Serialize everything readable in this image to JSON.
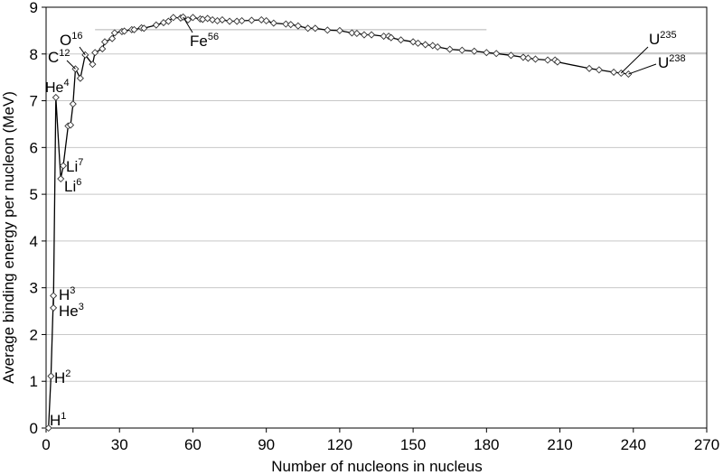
{
  "chart_data": {
    "type": "line",
    "title": "",
    "xlabel": "Number of nucleons in nucleus",
    "ylabel": "Average binding energy per nucleon (MeV)",
    "xlim": [
      0,
      270
    ],
    "ylim": [
      0,
      9
    ],
    "x_ticks": [
      "0",
      "30",
      "60",
      "90",
      "120",
      "150",
      "180",
      "210",
      "240",
      "270"
    ],
    "y_ticks": [
      "0",
      "1",
      "2",
      "3",
      "4",
      "5",
      "6",
      "7",
      "8",
      "9"
    ],
    "grid": "horizontal",
    "series": [
      {
        "x": [
          1,
          2,
          3,
          3,
          4,
          6,
          7,
          9,
          10,
          11,
          12,
          14,
          16,
          19,
          20,
          23,
          24,
          27,
          28,
          31,
          32,
          35,
          36,
          39,
          40,
          45,
          48,
          50,
          52,
          55,
          56,
          58,
          60,
          63,
          64,
          66,
          68,
          70,
          72,
          75,
          78,
          80,
          84,
          88,
          90,
          93,
          98,
          100,
          103,
          107,
          110,
          115,
          120,
          125,
          127,
          130,
          133,
          138,
          140,
          141,
          145,
          150,
          152,
          155,
          158,
          160,
          165,
          170,
          175,
          180,
          184,
          190,
          195,
          197,
          200,
          205,
          208,
          209,
          222,
          226,
          232,
          235,
          238
        ],
        "y": [
          0,
          1.11,
          2.83,
          2.57,
          7.07,
          5.33,
          5.61,
          6.46,
          6.48,
          6.93,
          7.68,
          7.48,
          7.98,
          7.78,
          8.03,
          8.11,
          8.26,
          8.33,
          8.45,
          8.48,
          8.49,
          8.52,
          8.52,
          8.56,
          8.55,
          8.62,
          8.67,
          8.7,
          8.78,
          8.77,
          8.79,
          8.73,
          8.78,
          8.75,
          8.74,
          8.76,
          8.73,
          8.71,
          8.73,
          8.7,
          8.7,
          8.71,
          8.72,
          8.73,
          8.71,
          8.66,
          8.64,
          8.63,
          8.6,
          8.55,
          8.55,
          8.51,
          8.5,
          8.45,
          8.44,
          8.41,
          8.41,
          8.38,
          8.38,
          8.35,
          8.3,
          8.26,
          8.23,
          8.2,
          8.18,
          8.15,
          8.1,
          8.08,
          8.06,
          8.03,
          8.01,
          7.97,
          7.93,
          7.91,
          7.89,
          7.87,
          7.87,
          7.83,
          7.69,
          7.66,
          7.61,
          7.59,
          7.57
        ]
      }
    ],
    "reference_lines": [
      {
        "y": 8.52,
        "x_from": 20,
        "x_to": 180
      },
      {
        "y": 8.02,
        "x_from": 180,
        "x_to": 270
      }
    ],
    "annotations": [
      {
        "base": "H",
        "sup": "1",
        "x": 1,
        "y": 0
      },
      {
        "base": "H",
        "sup": "2",
        "x": 2,
        "y": 1.11
      },
      {
        "base": "H",
        "sup": "3",
        "x": 3,
        "y": 2.83
      },
      {
        "base": "He",
        "sup": "3",
        "x": 3,
        "y": 2.57
      },
      {
        "base": "He",
        "sup": "4",
        "x": 4,
        "y": 7.07
      },
      {
        "base": "Li",
        "sup": "6",
        "x": 6,
        "y": 5.33
      },
      {
        "base": "Li",
        "sup": "7",
        "x": 7,
        "y": 5.61
      },
      {
        "base": "C",
        "sup": "12",
        "x": 12,
        "y": 7.68
      },
      {
        "base": "O",
        "sup": "16",
        "x": 16,
        "y": 7.98
      },
      {
        "base": "Fe",
        "sup": "56",
        "x": 56,
        "y": 8.79
      },
      {
        "base": "U",
        "sup": "235",
        "x": 235,
        "y": 7.59
      },
      {
        "base": "U",
        "sup": "238",
        "x": 238,
        "y": 7.57
      }
    ]
  }
}
